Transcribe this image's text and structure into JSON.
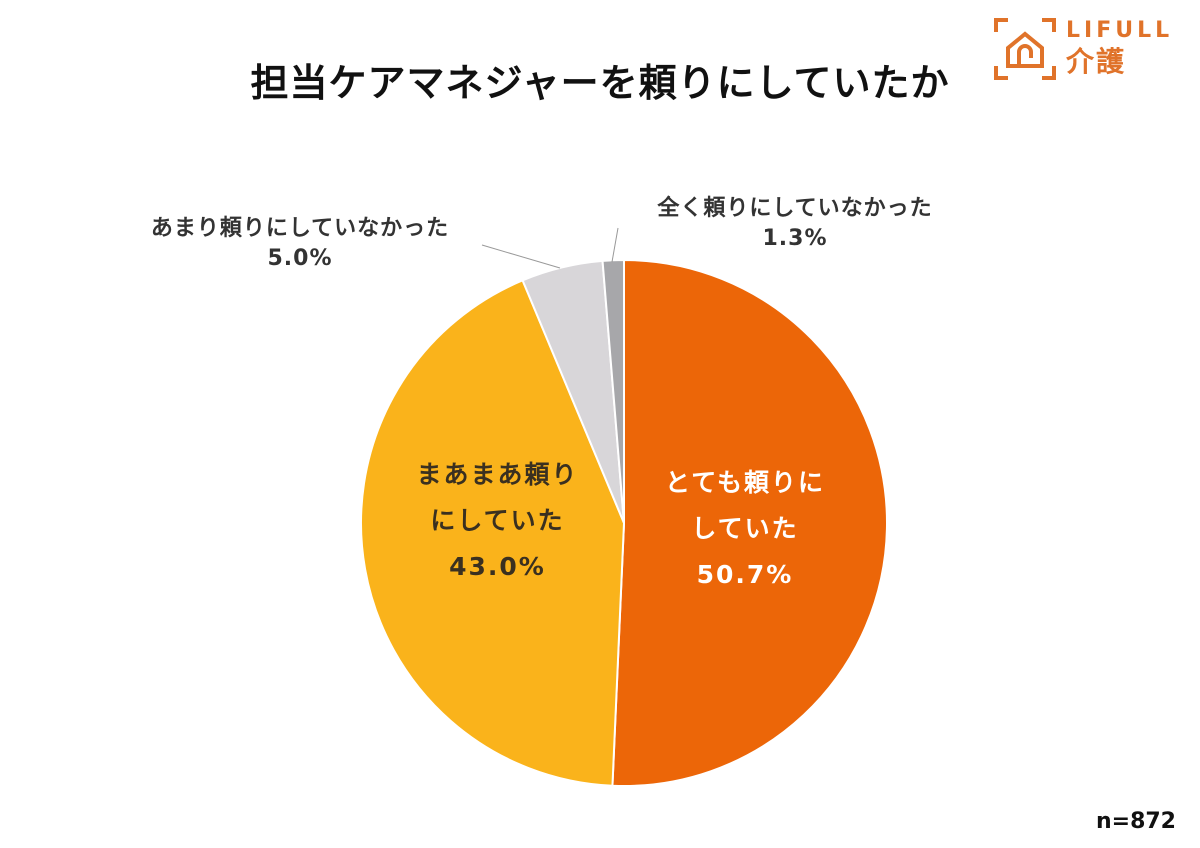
{
  "header": {
    "title": "担当ケアマネジャーを頼りにしていたか"
  },
  "logo": {
    "brand_en": "LIFULL",
    "brand_jp": "介護",
    "color": "#e0732a",
    "icon": "house-frame-icon"
  },
  "footer": {
    "sample_size": "n=872"
  },
  "labels": {
    "s0_line1": "とても頼りに",
    "s0_line2": "していた",
    "s0_value": "50.7%",
    "s1_line1": "まあまあ頼り",
    "s1_line2": "にしていた",
    "s1_value": "43.0%",
    "s2_line1": "あまり頼りにしていなかった",
    "s2_value": "5.0%",
    "s3_line1": "全く頼りにしていなかった",
    "s3_value": "1.3%"
  },
  "chart_data": {
    "type": "pie",
    "title": "担当ケアマネジャーを頼りにしていたか",
    "categories": [
      "とても頼りにしていた",
      "まあまあ頼りにしていた",
      "あまり頼りにしていなかった",
      "全く頼りにしていなかった"
    ],
    "values": [
      50.7,
      43.0,
      5.0,
      1.3
    ],
    "unit": "%",
    "colors": [
      "#ec6608",
      "#fab31b",
      "#d8d6d9",
      "#a7a7aa"
    ],
    "start_angle": "12 o'clock, clockwise",
    "sample_size": 872,
    "legend": "none (direct labels)"
  }
}
